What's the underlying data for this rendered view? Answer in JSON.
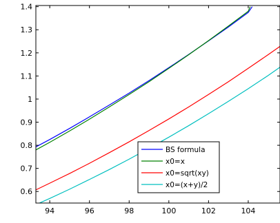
{
  "chart_data": {
    "type": "line",
    "title": "",
    "xlabel": "",
    "ylabel": "",
    "xlim": [
      93.3,
      105.6
    ],
    "ylim": [
      0.55,
      1.405
    ],
    "xticks": [
      94,
      96,
      98,
      100,
      102,
      104
    ],
    "xtick_labels": [
      "94",
      "96",
      "98",
      "100",
      "102",
      "104"
    ],
    "yticks": [
      0.6,
      0.7,
      0.8,
      0.9,
      1.0,
      1.1,
      1.2,
      1.3,
      1.4
    ],
    "ytick_labels": [
      "0.6",
      "0.7",
      "0.8",
      "0.9",
      "1",
      "1.1",
      "1.2",
      "1.3",
      "1.4"
    ],
    "grid": false,
    "legend_position": "lower-right",
    "series": [
      {
        "name": "BS formula",
        "color": "#0000ff",
        "x": [
          93.3,
          94,
          95,
          96,
          97,
          98,
          99,
          100,
          101,
          102,
          103,
          104,
          104.2
        ],
        "y": [
          0.793,
          0.825,
          0.873,
          0.923,
          0.974,
          1.026,
          1.08,
          1.136,
          1.193,
          1.252,
          1.312,
          1.375,
          1.4
        ]
      },
      {
        "name": "x0=x",
        "color": "#008000",
        "x": [
          93.3,
          94,
          95,
          96,
          97,
          98,
          99,
          100,
          101,
          102,
          103,
          104,
          104.1
        ],
        "y": [
          0.78,
          0.813,
          0.862,
          0.913,
          0.966,
          1.02,
          1.075,
          1.133,
          1.192,
          1.253,
          1.316,
          1.38,
          1.4
        ]
      },
      {
        "name": "x0=sqrt(xy)",
        "color": "#ff0000",
        "x": [
          93.3,
          94,
          95,
          96,
          97,
          98,
          99,
          100,
          101,
          102,
          103,
          104,
          105,
          105.6
        ],
        "y": [
          0.607,
          0.636,
          0.678,
          0.722,
          0.768,
          0.815,
          0.864,
          0.914,
          0.966,
          1.02,
          1.075,
          1.133,
          1.192,
          1.228
        ]
      },
      {
        "name": "x0=(x+y)/2",
        "color": "#00bfbf",
        "x": [
          93.3,
          94,
          95,
          96,
          97,
          98,
          99,
          100,
          101,
          102,
          103,
          104,
          105,
          105.6
        ],
        "y": [
          0.543,
          0.57,
          0.61,
          0.652,
          0.695,
          0.74,
          0.787,
          0.835,
          0.885,
          0.937,
          0.99,
          1.045,
          1.102,
          1.138
        ]
      }
    ]
  }
}
